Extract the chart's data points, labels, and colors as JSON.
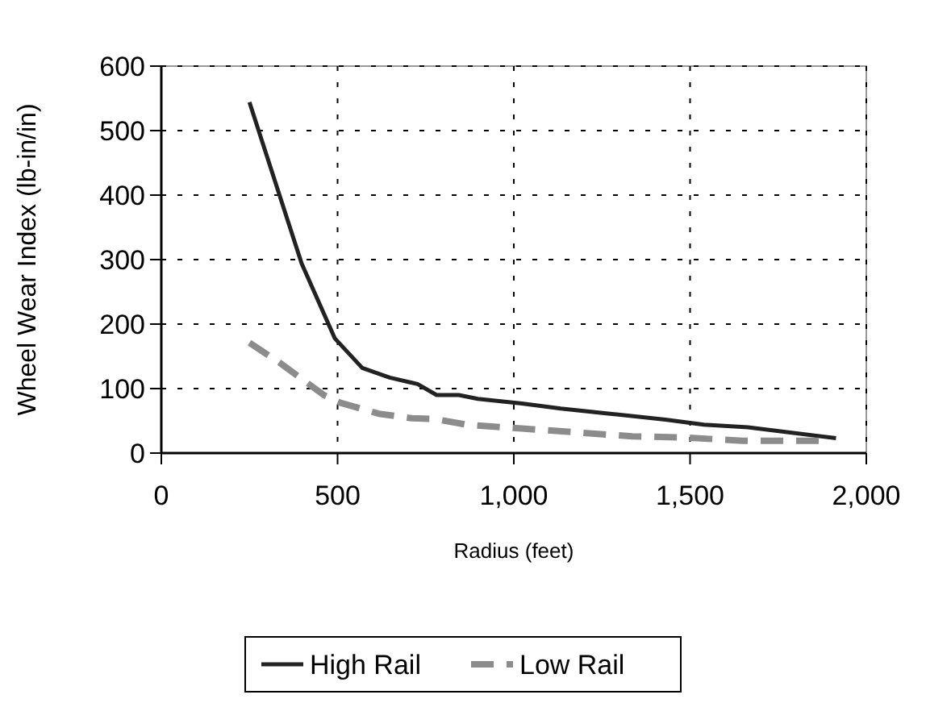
{
  "chart_data": {
    "type": "line",
    "xlabel": "Radius (feet)",
    "ylabel": "Wheel Wear Index (lb-in/in)",
    "xlim": [
      0,
      2000
    ],
    "xticks": [
      0,
      500,
      {
        "value": 1000,
        "label": "1,000"
      },
      {
        "value": 1500,
        "label": "1,500"
      },
      {
        "value": 2000,
        "label": "2,000"
      }
    ],
    "ylim": [
      0,
      600
    ],
    "yticks": [
      0,
      100,
      200,
      300,
      400,
      500,
      600
    ],
    "grid": true,
    "legend": "bottom",
    "series": [
      {
        "name": "High Rail",
        "color": "#222222",
        "line_style": "solid",
        "x": [
          250,
          398,
          492,
          570,
          648,
          727,
          781,
          844,
          898,
          1023,
          1133,
          1273,
          1430,
          1539,
          1664,
          1914
        ],
        "values": [
          544,
          294,
          178,
          132,
          117,
          107,
          90,
          90,
          84,
          77,
          69,
          61,
          52,
          44,
          40,
          23
        ]
      },
      {
        "name": "Low Rail",
        "color": "#8c8c8c",
        "line_style": "dashed",
        "x": [
          250,
          336,
          461,
          508,
          617,
          711,
          773,
          867,
          1023,
          1180,
          1336,
          1492,
          1648,
          1883
        ],
        "values": [
          171,
          140,
          90,
          78,
          61,
          54,
          53,
          44,
          38,
          32,
          26,
          24,
          19,
          19
        ]
      }
    ]
  }
}
